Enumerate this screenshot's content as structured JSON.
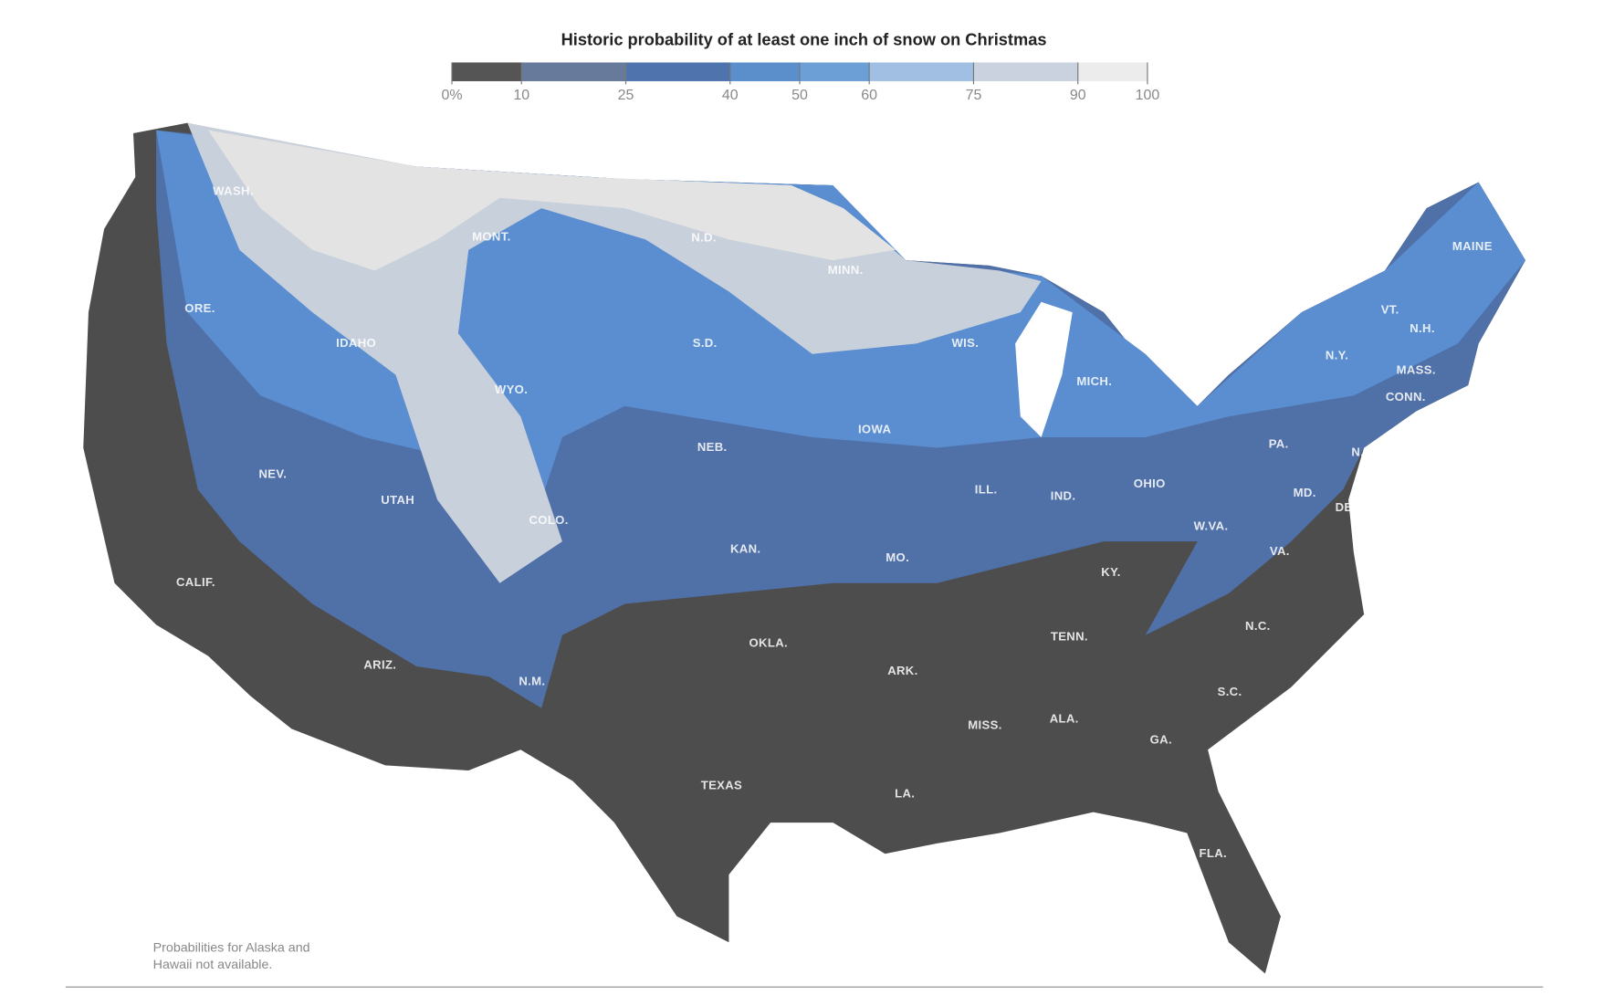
{
  "title": "Historic probability of at least one inch of snow on Christmas",
  "legend": {
    "ticks": [
      {
        "value": 0,
        "label": "0%"
      },
      10,
      25,
      40,
      50,
      60,
      75,
      90,
      100
    ],
    "colors": [
      "#555555",
      "#687a9c",
      "#4f74ad",
      "#5b8fcb",
      "#6c9fd6",
      "#a1bfe2",
      "#c9d2de",
      "#ececec"
    ]
  },
  "states": [
    "WASH.",
    "MONT.",
    "N.D.",
    "MINN.",
    "MAINE",
    "ORE.",
    "IDAHO",
    "WYO.",
    "S.D.",
    "WIS.",
    "MICH.",
    "VT.",
    "N.H.",
    "N.Y.",
    "MASS.",
    "CONN.",
    "IOWA",
    "NEB.",
    "PA.",
    "N.J.",
    "NEV.",
    "UTAH",
    "COLO.",
    "ILL.",
    "IND.",
    "OHIO",
    "MD.",
    "DEL.",
    "W.VA.",
    "VA.",
    "KAN.",
    "MO.",
    "KY.",
    "CALIF.",
    "TENN.",
    "N.C.",
    "OKLA.",
    "ARK.",
    "ARIZ.",
    "N.M.",
    "S.C.",
    "ALA.",
    "MISS.",
    "GA.",
    "TEXAS",
    "LA.",
    "FLA."
  ],
  "note": [
    "Probabilities for Alaska and",
    "Hawaii not available."
  ]
}
